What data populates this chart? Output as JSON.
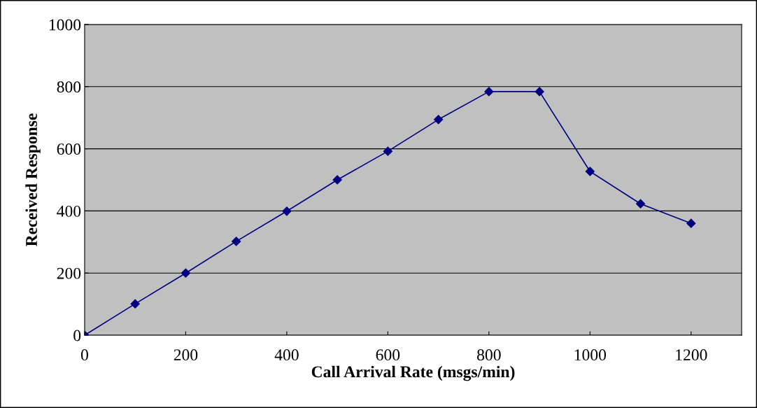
{
  "chart_data": {
    "type": "line",
    "xlabel": "Call Arrival Rate (msgs/min)",
    "ylabel": "Received Response",
    "x": [
      0,
      100,
      200,
      300,
      400,
      500,
      600,
      700,
      800,
      900,
      1000,
      1100,
      1200
    ],
    "series": [
      {
        "color": "#000080",
        "values": [
          0,
          101,
          200,
          302,
          399,
          500,
          592,
          694,
          784,
          784,
          527,
          423,
          360
        ]
      }
    ],
    "xlim": [
      0,
      1300
    ],
    "xticks": [
      0,
      200,
      400,
      600,
      800,
      1000,
      1200
    ],
    "ylim": [
      0,
      1000
    ],
    "yticks": [
      0,
      200,
      400,
      600,
      800,
      1000
    ],
    "grid": "y",
    "marker": "diamond",
    "line_style": "solid",
    "legend": false
  }
}
